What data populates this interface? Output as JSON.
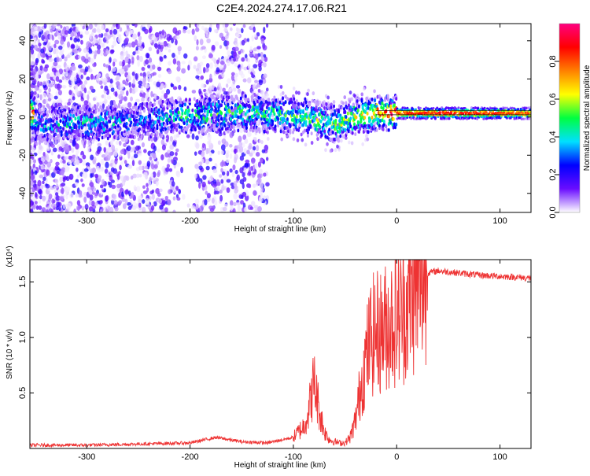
{
  "title": "C2E4.2024.274.17.06.R21",
  "chart_data": [
    {
      "type": "heatmap",
      "xlabel": "Height of straight line (km)",
      "ylabel": "Frequency (Hz)",
      "xlim": [
        -355,
        130
      ],
      "ylim": [
        -50,
        49
      ],
      "xticks": [
        -300,
        -200,
        -100,
        0,
        100
      ],
      "yticks": [
        -40,
        -20,
        0,
        20,
        40
      ],
      "colorbar": {
        "label": "Normalized spectral amplitude",
        "range": [
          0,
          1
        ],
        "ticks": [
          "0.0",
          "0.2",
          "0.4",
          "0.6",
          "0.8"
        ],
        "tick_values": [
          0,
          0.2,
          0.4,
          0.6,
          0.8
        ],
        "colors": [
          "#ffffff",
          "#6a0dff",
          "#0000ff",
          "#00e0ff",
          "#00ff40",
          "#ffff00",
          "#ff8000",
          "#ff0000",
          "#ff0080"
        ]
      },
      "ridge": [
        {
          "x": -350,
          "f": -4,
          "a": 0.3
        },
        {
          "x": -300,
          "f": -3,
          "a": 0.35
        },
        {
          "x": -250,
          "f": -2,
          "a": 0.25
        },
        {
          "x": -205,
          "f": 1,
          "a": 0.4
        },
        {
          "x": -150,
          "f": 2,
          "a": 0.45
        },
        {
          "x": -110,
          "f": 1,
          "a": 0.45
        },
        {
          "x": -80,
          "f": -1,
          "a": 0.5
        },
        {
          "x": -60,
          "f": -4,
          "a": 0.45
        },
        {
          "x": -40,
          "f": 0,
          "a": 0.55
        },
        {
          "x": -20,
          "f": 2,
          "a": 0.7
        },
        {
          "x": 0,
          "f": 2,
          "a": 0.85
        },
        {
          "x": 50,
          "f": 2,
          "a": 0.9
        },
        {
          "x": 100,
          "f": 2,
          "a": 0.85
        },
        {
          "x": 130,
          "f": 2,
          "a": 0.8
        }
      ]
    },
    {
      "type": "line",
      "xlabel": "Height of straight line (km)",
      "ylabel": "SNR (10 * v/v)",
      "multiplier": "(x10⁴)",
      "xlim": [
        -355,
        130
      ],
      "ylim": [
        0,
        1.7
      ],
      "xticks": [
        -300,
        -200,
        -100,
        0,
        100
      ],
      "yticks": [
        "0.5",
        "1.0",
        "1.5"
      ],
      "ytick_values": [
        0.5,
        1.0,
        1.5
      ],
      "color": "#ee3333",
      "series": [
        {
          "x": [
            -355,
            -300,
            -250,
            -200,
            -175,
            -150,
            -125,
            -100,
            -90,
            -85,
            -80,
            -75,
            -70,
            -65,
            -60,
            -55,
            -50,
            -45,
            -40,
            -35,
            -30,
            -25,
            -20,
            -15,
            -10,
            -5,
            0,
            5,
            10,
            20,
            30,
            40,
            60,
            80,
            100,
            120,
            130
          ],
          "y": [
            0.03,
            0.03,
            0.04,
            0.05,
            0.1,
            0.06,
            0.05,
            0.1,
            0.2,
            0.35,
            0.6,
            0.35,
            0.15,
            0.08,
            0.06,
            0.05,
            0.05,
            0.1,
            0.25,
            0.55,
            0.8,
            1.0,
            1.05,
            1.05,
            1.1,
            1.15,
            1.2,
            1.2,
            1.3,
            1.45,
            1.58,
            1.6,
            1.58,
            1.56,
            1.55,
            1.54,
            1.53
          ]
        }
      ]
    }
  ]
}
